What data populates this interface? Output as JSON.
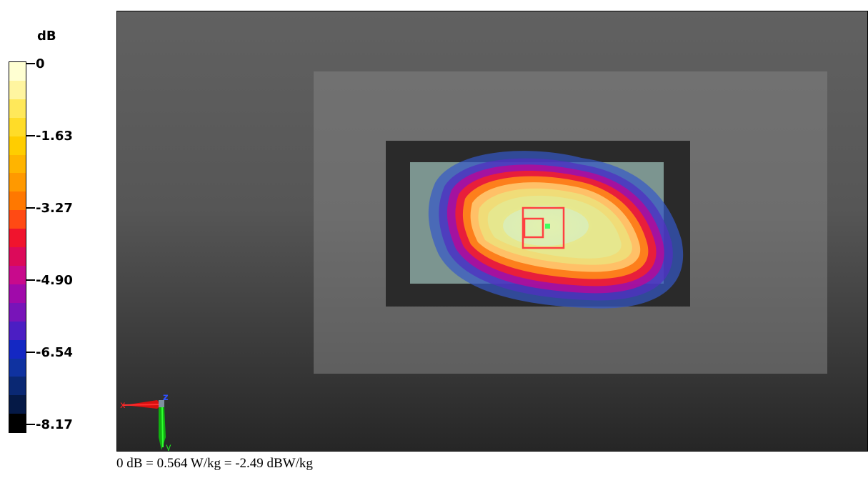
{
  "colorbar": {
    "unit": "dB",
    "tick_labels": [
      "0",
      "-1.63",
      "-3.27",
      "-4.90",
      "-6.54",
      "-8.17"
    ],
    "colors": [
      "#ffffd2",
      "#fff5a0",
      "#ffe85a",
      "#ffdc28",
      "#ffcd00",
      "#ffb400",
      "#ff9900",
      "#ff7800",
      "#ff4a14",
      "#f0142d",
      "#dc0a5a",
      "#c80a8c",
      "#a00aaa",
      "#7814b9",
      "#4b1ec3",
      "#1428c3",
      "#0f32a0",
      "#0a2873",
      "#051946",
      "#000000"
    ]
  },
  "axes_indicator": {
    "x_label": "x",
    "y_label": "y",
    "z_label": "z",
    "colors": {
      "x": "#ff2020",
      "y": "#20e020",
      "z": "#3050ff"
    }
  },
  "caption": "0 dB = 0.564 W/kg = -2.49 dBW/kg"
}
